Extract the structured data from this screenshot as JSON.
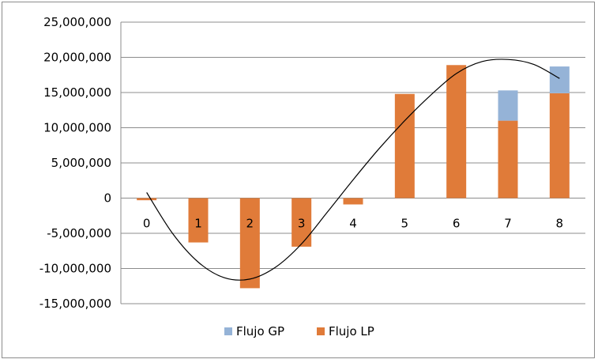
{
  "chart_data": {
    "type": "bar",
    "stacked": true,
    "categories": [
      "0",
      "1",
      "2",
      "3",
      "4",
      "5",
      "6",
      "7",
      "8"
    ],
    "series": [
      {
        "name": "Flujo LP",
        "color": "#e07b39",
        "values": [
          -300000,
          -6300000,
          -12800000,
          -6900000,
          -900000,
          14800000,
          18900000,
          11000000,
          14900000
        ]
      },
      {
        "name": "Flujo GP",
        "color": "#95b3d7",
        "values": [
          0,
          0,
          0,
          0,
          0,
          0,
          0,
          4300000,
          3800000
        ]
      }
    ],
    "legend_order": [
      1,
      0
    ],
    "legend_position": "bottom",
    "ylim": [
      -15000000,
      25000000
    ],
    "ytick_step": 5000000,
    "yticks": [
      "25,000,000",
      "20,000,000",
      "15,000,000",
      "10,000,000",
      "5,000,000",
      "0",
      "-5,000,000",
      "-10,000,000",
      "-15,000,000"
    ],
    "grid": true,
    "trend_line": {
      "type": "polynomial",
      "color": "#000000",
      "x": [
        0,
        0.5,
        1,
        1.5,
        2,
        2.5,
        3,
        3.5,
        4,
        4.5,
        5,
        5.5,
        6,
        6.5,
        7,
        7.5,
        8
      ],
      "y": [
        800000,
        -5000000,
        -9100000,
        -11300000,
        -11500000,
        -9800000,
        -6500000,
        -2000000,
        2600000,
        7000000,
        11000000,
        14600000,
        17700000,
        19400000,
        19700000,
        19000000,
        17000000
      ]
    }
  }
}
